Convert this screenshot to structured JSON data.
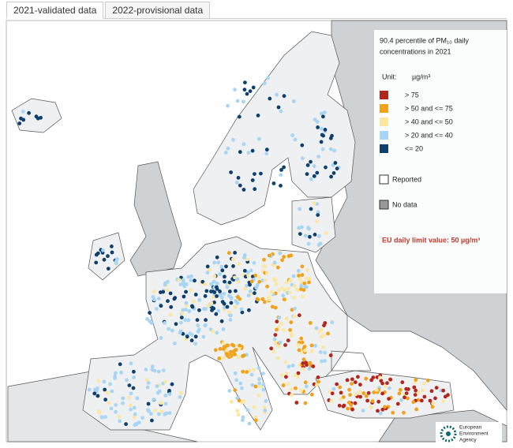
{
  "tabs": [
    "2021-validated data",
    "2022-provisional data"
  ],
  "legend": {
    "title_lines": [
      "90.4 percentile of PM₁₀ daily",
      "concentrations in 2021"
    ],
    "unit_label": "Unit:",
    "unit": "µg/m³",
    "items": [
      {
        "label": "> 75",
        "color": "#b3261e"
      },
      {
        "label": "> 50 and <= 75",
        "color": "#f0a21a"
      },
      {
        "label": "> 40 and <= 50",
        "color": "#fce7a2"
      },
      {
        "label": "> 20 and <= 40",
        "color": "#a8d5f3"
      },
      {
        "label": "<= 20",
        "color": "#0f406d"
      }
    ],
    "reported": "Reported",
    "no_data": "No data",
    "limit_note": "EU daily limit value: 50 µg/m³"
  },
  "logo": {
    "lines": [
      "European",
      "Environment",
      "Agency"
    ]
  }
}
